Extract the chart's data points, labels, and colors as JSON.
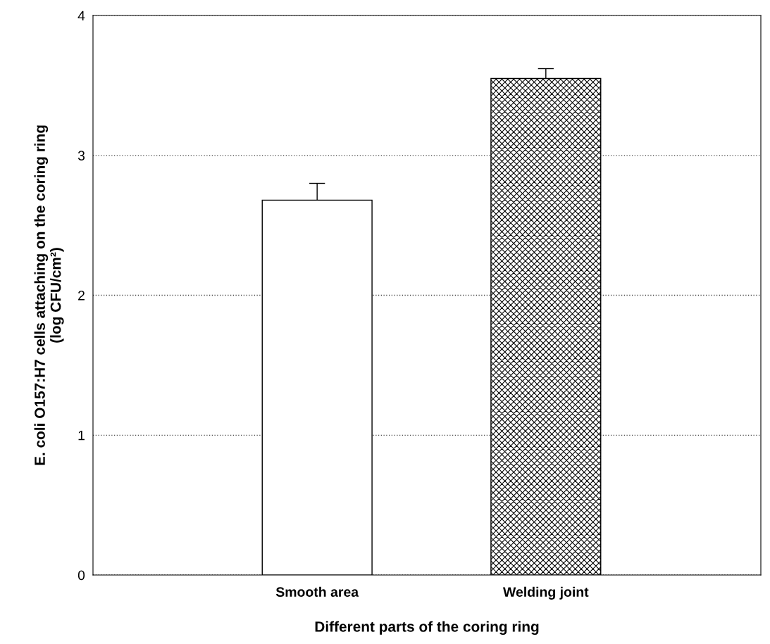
{
  "chart_data": {
    "type": "bar",
    "xlabel": "Different parts of the coring ring",
    "ylabel": "E. coli O157:H7 cells attaching on the coring ring\n(log CFU/cm²)",
    "categories": [
      "Smooth area",
      "Welding joint"
    ],
    "values": [
      2.68,
      3.55
    ],
    "errors": [
      0.12,
      0.07
    ],
    "colors": [
      "#ffffff",
      "#000000"
    ],
    "ylim": [
      0,
      4
    ],
    "yticks": [
      0,
      1,
      2,
      3,
      4
    ],
    "grid": "y",
    "legend": false
  }
}
